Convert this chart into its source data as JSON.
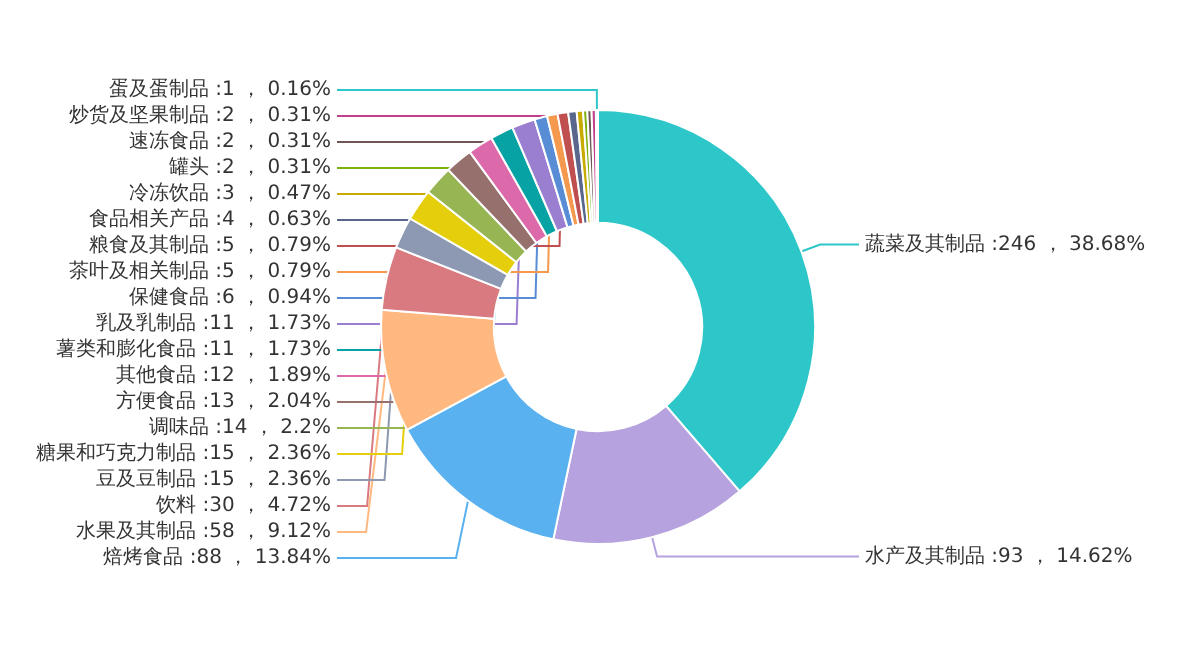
{
  "chart_data": {
    "type": "donut",
    "categories": [
      "蔬菜及其制品",
      "水产及其制品",
      "焙烤食品",
      "水果及其制品",
      "饮料",
      "豆及豆制品",
      "糖果和巧克力制品",
      "调味品",
      "方便食品",
      "其他食品",
      "薯类和膨化食品",
      "乳及乳制品",
      "保健食品",
      "茶叶及相关制品",
      "粮食及其制品",
      "食品相关产品",
      "冷冻饮品",
      "罐头",
      "速冻食品",
      "炒货及坚果制品",
      "蛋及蛋制品"
    ],
    "values": [
      246,
      93,
      88,
      58,
      30,
      15,
      15,
      14,
      13,
      12,
      11,
      11,
      6,
      5,
      5,
      4,
      3,
      2,
      2,
      2,
      1
    ],
    "colors": [
      "#2ec7c9",
      "#b6a2de",
      "#5ab1ef",
      "#ffb980",
      "#d87a80",
      "#8d98b3",
      "#e5cf0d",
      "#97b552",
      "#95706d",
      "#dc69aa",
      "#07a2a4",
      "#9a7fd1",
      "#588dd5",
      "#f5994e",
      "#c05050",
      "#59678c",
      "#c9ab00",
      "#7eb00a",
      "#6f5553",
      "#c14089",
      "#2ec7c9"
    ],
    "value_labels": [
      ":246 ， 38.68%",
      ":93 ， 14.62%",
      ":88 ， 13.84%",
      ":58 ， 9.12%",
      ":30 ， 4.72%",
      ":15 ， 2.36%",
      ":15 ， 2.36%",
      ":14 ， 2.2%",
      ":13 ， 2.04%",
      ":12 ， 1.89%",
      ":11 ， 1.73%",
      ":11 ， 1.73%",
      ":6 ， 0.94%",
      ":5 ， 0.79%",
      ":5 ， 0.79%",
      ":4 ， 0.63%",
      ":3 ， 0.47%",
      ":2 ， 0.31%",
      ":2 ， 0.31%",
      ":2 ， 0.31%",
      ":1 ， 0.16%"
    ]
  }
}
